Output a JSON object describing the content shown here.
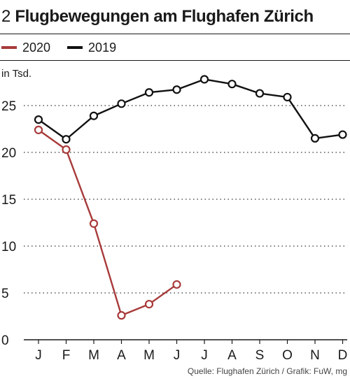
{
  "header": {
    "figure_number": "2",
    "title": "Flugbewegungen am Flughafen Zürich"
  },
  "legend": [
    {
      "label": "2020",
      "color": "#a83a3a"
    },
    {
      "label": "2019",
      "color": "#111111"
    }
  ],
  "source": "Quelle: Flughafen Zürich / Grafik: FuW, mg",
  "chart_data": {
    "type": "line",
    "title": "Flugbewegungen am Flughafen Zürich",
    "ylabel": "in Tsd.",
    "xlabel": "",
    "categories": [
      "J",
      "F",
      "M",
      "A",
      "M",
      "J",
      "J",
      "A",
      "S",
      "O",
      "N",
      "D"
    ],
    "ylim": [
      0,
      25
    ],
    "yticks": [
      0,
      5,
      10,
      15,
      20,
      25
    ],
    "grid": "horizontal dotted",
    "legend_position": "top-left",
    "series": [
      {
        "name": "2020",
        "color": "#a83a3a",
        "marker": "open-circle",
        "values": [
          22.4,
          20.3,
          12.4,
          2.6,
          3.8,
          5.9,
          null,
          null,
          null,
          null,
          null,
          null
        ]
      },
      {
        "name": "2019",
        "color": "#111111",
        "marker": "open-circle",
        "values": [
          23.5,
          21.4,
          23.9,
          25.2,
          26.4,
          26.7,
          27.8,
          27.3,
          26.3,
          25.9,
          21.5,
          21.9
        ]
      }
    ]
  }
}
